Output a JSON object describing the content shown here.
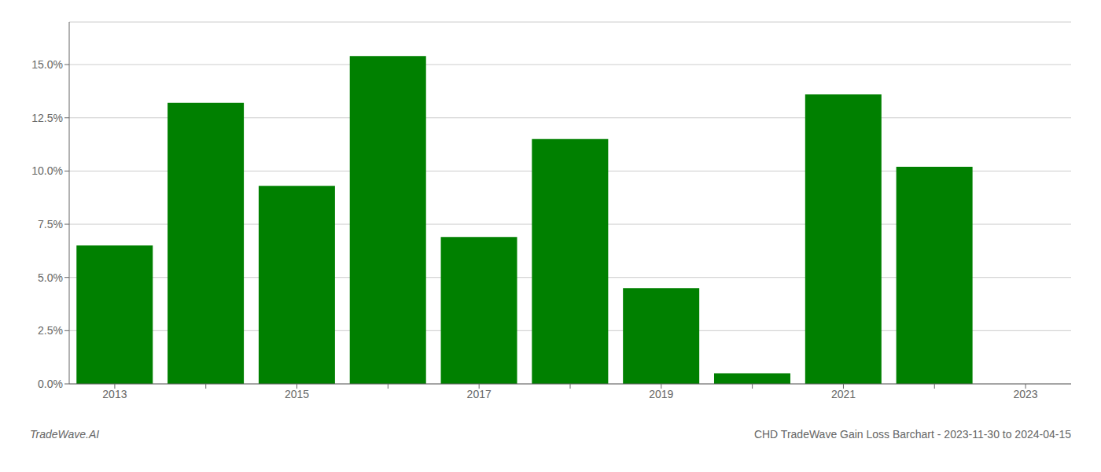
{
  "chart_data": {
    "type": "bar",
    "title": "CHD TradeWave Gain Loss Barchart - 2023-11-30 to 2024-04-15",
    "annotations": [
      "TradeWave.AI"
    ],
    "categories": [
      "2013",
      null,
      "2015",
      null,
      "2017",
      null,
      "2019",
      null,
      "2021",
      null,
      "2023"
    ],
    "values": [
      0.065,
      0.132,
      0.093,
      0.154,
      0.069,
      0.115,
      0.045,
      0.005,
      0.136,
      0.102,
      0.0
    ],
    "color": "#008000",
    "ylim": [
      0,
      0.17
    ],
    "yticks": [
      {
        "value": 0.0,
        "label": "0.0%"
      },
      {
        "value": 0.025,
        "label": "2.5%"
      },
      {
        "value": 0.05,
        "label": "5.0%"
      },
      {
        "value": 0.075,
        "label": "7.5%"
      },
      {
        "value": 0.1,
        "label": "10.0%"
      },
      {
        "value": 0.125,
        "label": "12.5%"
      },
      {
        "value": 0.15,
        "label": "15.0%"
      }
    ],
    "grid": true
  }
}
